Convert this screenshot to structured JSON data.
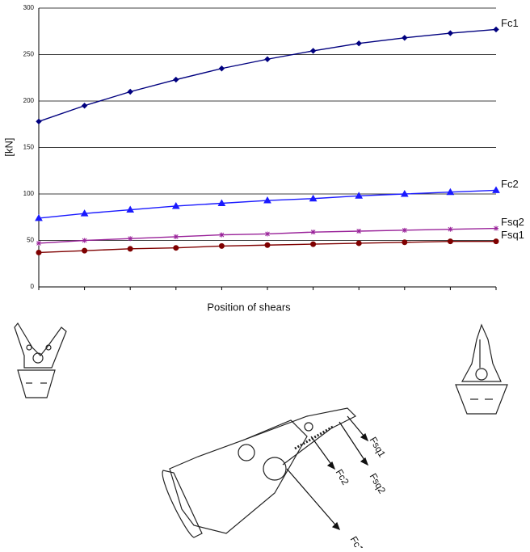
{
  "chart_data": {
    "type": "line",
    "x_label": "Position of shears",
    "y_label": "[kN]",
    "categories": [
      null,
      null,
      null,
      null,
      null,
      null,
      null,
      null,
      null,
      null,
      null
    ],
    "ylim": [
      0,
      300
    ],
    "yticks": [
      0,
      50,
      100,
      150,
      200,
      250,
      300
    ],
    "grid": true,
    "series": [
      {
        "name": "Fc1",
        "color": "#00007f",
        "marker": "diamond",
        "values": [
          178,
          195,
          210,
          223,
          235,
          245,
          254,
          262,
          268,
          273,
          277
        ]
      },
      {
        "name": "Fc2",
        "color": "#1a1aff",
        "marker": "triangle",
        "values": [
          74,
          79,
          83,
          87,
          90,
          93,
          95,
          98,
          100,
          102,
          104
        ]
      },
      {
        "name": "Fsq2",
        "color": "#992299",
        "marker": "asterisk",
        "values": [
          47,
          50,
          52,
          54,
          56,
          57,
          59,
          60,
          61,
          62,
          63
        ]
      },
      {
        "name": "Fsq1",
        "color": "#7f0000",
        "marker": "circle",
        "values": [
          37,
          39,
          41,
          42,
          44,
          45,
          46,
          47,
          48,
          49,
          49
        ]
      }
    ]
  }
}
